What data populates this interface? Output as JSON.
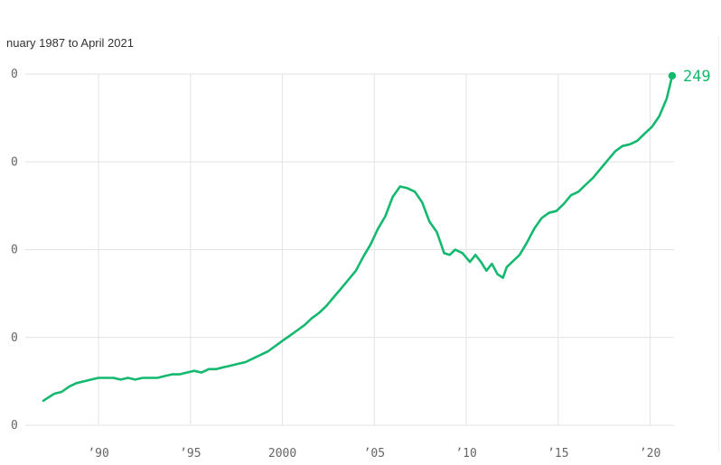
{
  "subtitle": "nuary 1987 to April 2021",
  "colors": {
    "line": "#14b96f",
    "grid": "#e3e3e3",
    "tick_text": "#666666"
  },
  "chart_data": {
    "type": "line",
    "subtitle": "nuary 1987 to April 2021",
    "xlim": [
      1987.0,
      2021.3
    ],
    "ylim": [
      50,
      250
    ],
    "y_ticks": [
      50,
      100,
      150,
      200,
      250
    ],
    "y_tick_labels": [
      "0",
      "0",
      "0",
      "0",
      "0"
    ],
    "x_ticks": [
      1990,
      1995,
      2000,
      2005,
      2010,
      2015,
      2020
    ],
    "x_tick_labels": [
      "'90",
      "'95",
      "2000",
      "'05",
      "'10",
      "'15",
      "'20"
    ],
    "grid": true,
    "end_label": "249",
    "series": [
      {
        "x": [
          1987.0,
          1987.3,
          1987.6,
          1988.0,
          1988.4,
          1988.8,
          1989.2,
          1989.6,
          1990.0,
          1990.4,
          1990.8,
          1991.2,
          1991.6,
          1992.0,
          1992.4,
          1992.8,
          1993.2,
          1993.6,
          1994.0,
          1994.4,
          1994.8,
          1995.2,
          1995.6,
          1996.0,
          1996.4,
          1996.8,
          1997.2,
          1997.6,
          1998.0,
          1998.4,
          1998.8,
          1999.2,
          1999.6,
          2000.0,
          2000.4,
          2000.8,
          2001.2,
          2001.6,
          2002.0,
          2002.4,
          2002.8,
          2003.2,
          2003.6,
          2004.0,
          2004.4,
          2004.8,
          2005.2,
          2005.6,
          2006.0,
          2006.4,
          2006.8,
          2007.2,
          2007.6,
          2008.0,
          2008.4,
          2008.8,
          2009.1,
          2009.4,
          2009.8,
          2010.2,
          2010.5,
          2010.8,
          2011.1,
          2011.4,
          2011.7,
          2012.0,
          2012.2,
          2012.5,
          2012.9,
          2013.3,
          2013.7,
          2014.1,
          2014.5,
          2014.9,
          2015.3,
          2015.7,
          2016.1,
          2016.5,
          2016.9,
          2017.3,
          2017.7,
          2018.1,
          2018.5,
          2018.9,
          2019.3,
          2019.7,
          2020.1,
          2020.5,
          2020.9,
          2021.2
        ],
        "values": [
          64,
          66,
          68,
          69,
          72,
          74,
          75,
          76,
          77,
          77,
          77,
          76,
          77,
          76,
          77,
          77,
          77,
          78,
          79,
          79,
          80,
          81,
          80,
          82,
          82,
          83,
          84,
          85,
          86,
          88,
          90,
          92,
          95,
          98,
          101,
          104,
          107,
          111,
          114,
          118,
          123,
          128,
          133,
          138,
          146,
          153,
          162,
          169,
          180,
          186,
          185,
          183,
          177,
          166,
          160,
          148,
          147,
          150,
          148,
          143,
          147,
          143,
          138,
          142,
          136,
          134,
          140,
          143,
          147,
          154,
          162,
          168,
          171,
          172,
          176,
          181,
          183,
          187,
          191,
          196,
          201,
          206,
          209,
          210,
          212,
          216,
          220,
          226,
          236,
          249
        ]
      }
    ]
  }
}
